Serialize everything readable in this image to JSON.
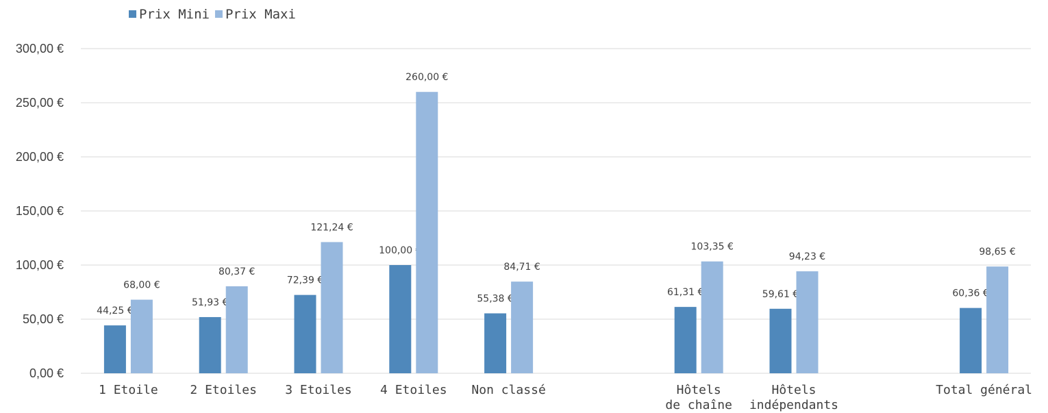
{
  "chart_data": {
    "type": "bar",
    "categories": [
      [
        "1 Etoile"
      ],
      [
        "2 Etoiles"
      ],
      [
        "3 Etoiles"
      ],
      [
        "4 Etoiles"
      ],
      [
        "Non classé"
      ],
      [],
      [
        "Hôtels",
        "de chaîne"
      ],
      [
        "Hôtels",
        "indépendants"
      ],
      [],
      [
        "Total général"
      ]
    ],
    "series": [
      {
        "name": "Prix Mini",
        "color": "#4f88bb",
        "values": [
          44.25,
          51.93,
          72.39,
          100.0,
          55.38,
          null,
          61.31,
          59.61,
          null,
          60.36
        ],
        "labels": [
          "44,25 €",
          "51,93 €",
          "72,39 €",
          "100,00 €",
          "55,38 €",
          null,
          "61,31 €",
          "59,61 €",
          null,
          "60,36 €"
        ]
      },
      {
        "name": "Prix Maxi",
        "color": "#97b8de",
        "values": [
          68.0,
          80.37,
          121.24,
          260.0,
          84.71,
          null,
          103.35,
          94.23,
          null,
          98.65
        ],
        "labels": [
          "68,00 €",
          "80,37 €",
          "121,24 €",
          "260,00 €",
          "84,71 €",
          null,
          "103,35 €",
          "94,23 €",
          null,
          "98,65 €"
        ]
      }
    ],
    "ylim": [
      0,
      300
    ],
    "yticks": [
      0,
      50,
      100,
      150,
      200,
      250,
      300
    ],
    "ytick_labels": [
      "0,00 €",
      "50,00 €",
      "100,00 €",
      "150,00 €",
      "200,00 €",
      "250,00 €",
      "300,00 €"
    ],
    "grid": true,
    "legend_position": "top-left",
    "title": "",
    "xlabel": "",
    "ylabel": ""
  }
}
